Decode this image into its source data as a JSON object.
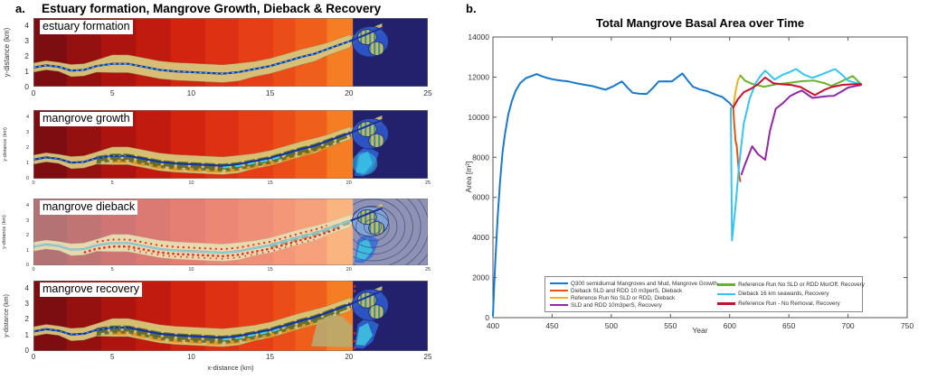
{
  "panel_a": {
    "label": "a.",
    "title": "Estuary formation, Mangrove Growth, Dieback & Recovery",
    "xlabel": "x-distance (km)",
    "ylabel": "y-distance (km)",
    "x_ticks": [
      0,
      5,
      10,
      15,
      20,
      25
    ],
    "y_ticks": [
      0,
      1,
      2,
      3,
      4
    ],
    "subplots": [
      {
        "label": "estuary formation",
        "mode": "formation"
      },
      {
        "label": "mangrove growth",
        "mode": "growth"
      },
      {
        "label": "mangrove dieback",
        "mode": "dieback"
      },
      {
        "label": "mangrove recovery",
        "mode": "recovery"
      }
    ]
  },
  "panel_b": {
    "label": "b."
  },
  "map_colors": {
    "band_edges": [
      0,
      2.1,
      4.3,
      6.5,
      8.7,
      10.9,
      13.0,
      15.2,
      16.6,
      18.6,
      20.25
    ],
    "bands": [
      "#7C0D10",
      "#951110",
      "#AD1410",
      "#C11B0F",
      "#D32410",
      "#DE3113",
      "#E63E16",
      "#EA4D18",
      "#F05E1C",
      "#F57E24"
    ],
    "ocean": "#23216B",
    "ocean_dieback": "#8E92B4",
    "floodplain": "#D8C47B",
    "channel": "#16339E",
    "cyan": "#45D2E4",
    "mangrove_olive": "#5A692D",
    "orange_band": "#E5961C",
    "dieback_red": "#E22D1A",
    "delta_blue": "#2E55C8",
    "contour": "#41477F",
    "wash_opacity": 0.42
  },
  "chart_data": {
    "type": "line",
    "title": "Total Mangrove Basal Area over Time",
    "xlabel": "Year",
    "ylabel": "Area [m²]",
    "xlim": [
      400,
      750
    ],
    "ylim": [
      0,
      14000
    ],
    "x_ticks": [
      400,
      450,
      500,
      550,
      600,
      650,
      700,
      750
    ],
    "y_ticks": [
      0,
      2000,
      4000,
      6000,
      8000,
      10000,
      12000,
      14000
    ],
    "grid": false,
    "axis_color": "#555",
    "legend_position": "inside-bottom-center",
    "legend_columns": [
      [
        0,
        1,
        2,
        3
      ],
      [
        4,
        5,
        6
      ]
    ],
    "series": [
      {
        "name": "Q300 semidiurnal Mangroves and Mud, Mangrove Growth",
        "color": "#1879D0",
        "points": [
          [
            400,
            100
          ],
          [
            401,
            1500
          ],
          [
            402,
            2800
          ],
          [
            404,
            5000
          ],
          [
            406,
            6800
          ],
          [
            408,
            8200
          ],
          [
            410,
            9100
          ],
          [
            413,
            10150
          ],
          [
            416,
            10800
          ],
          [
            419,
            11300
          ],
          [
            423,
            11700
          ],
          [
            428,
            11950
          ],
          [
            433,
            12060
          ],
          [
            437,
            12150
          ],
          [
            441,
            12050
          ],
          [
            446,
            11950
          ],
          [
            452,
            11870
          ],
          [
            458,
            11820
          ],
          [
            464,
            11780
          ],
          [
            470,
            11700
          ],
          [
            477,
            11620
          ],
          [
            484,
            11550
          ],
          [
            490,
            11450
          ],
          [
            495,
            11370
          ],
          [
            502,
            11550
          ],
          [
            509,
            11780
          ],
          [
            514,
            11450
          ],
          [
            518,
            11220
          ],
          [
            524,
            11170
          ],
          [
            530,
            11160
          ],
          [
            535,
            11450
          ],
          [
            540,
            11780
          ],
          [
            546,
            11790
          ],
          [
            551,
            11780
          ],
          [
            556,
            12000
          ],
          [
            560,
            12180
          ],
          [
            565,
            11800
          ],
          [
            569,
            11520
          ],
          [
            575,
            11380
          ],
          [
            581,
            11300
          ],
          [
            588,
            11130
          ],
          [
            594,
            11000
          ],
          [
            600,
            10700
          ],
          [
            603,
            10480
          ]
        ]
      },
      {
        "name": "Dieback SLD and RDD 10 m3perS, Dieback",
        "color": "#E8520E",
        "points": [
          [
            603,
            10480
          ],
          [
            604,
            9600
          ],
          [
            605,
            8800
          ],
          [
            606,
            8550
          ],
          [
            607,
            7800
          ],
          [
            608,
            7100
          ],
          [
            609,
            6800
          ]
        ]
      },
      {
        "name": "Reference Run No SLD or RDD, Dieback",
        "color": "#F0B01E",
        "points": [
          [
            603,
            10480
          ],
          [
            605,
            11300
          ],
          [
            607,
            11850
          ],
          [
            609,
            12080
          ]
        ]
      },
      {
        "name": "SLD and RDD 10m3perS, Recovery",
        "color": "#9226A8",
        "points": [
          [
            610,
            7150
          ],
          [
            613,
            7650
          ],
          [
            619,
            8550
          ],
          [
            624,
            8150
          ],
          [
            630,
            7880
          ],
          [
            634,
            9300
          ],
          [
            639,
            10420
          ],
          [
            645,
            10700
          ],
          [
            651,
            11050
          ],
          [
            656,
            11200
          ],
          [
            661,
            11330
          ],
          [
            666,
            11120
          ],
          [
            670,
            10960
          ],
          [
            677,
            11010
          ],
          [
            683,
            11050
          ],
          [
            688,
            11060
          ],
          [
            694,
            11260
          ],
          [
            700,
            11480
          ],
          [
            706,
            11550
          ],
          [
            711,
            11600
          ]
        ]
      },
      {
        "name": "Reference Run No SLD or RDD MorOff, Recovery",
        "color": "#67B32D",
        "points": [
          [
            609,
            12080
          ],
          [
            613,
            11820
          ],
          [
            620,
            11640
          ],
          [
            629,
            11520
          ],
          [
            640,
            11650
          ],
          [
            650,
            11710
          ],
          [
            660,
            11790
          ],
          [
            671,
            11830
          ],
          [
            680,
            11700
          ],
          [
            686,
            11560
          ],
          [
            695,
            11800
          ],
          [
            704,
            12050
          ],
          [
            711,
            11650
          ]
        ]
      },
      {
        "name": "Dieback 16 km seawards, Recovery",
        "color": "#33C5F3",
        "points": [
          [
            601,
            10450
          ],
          [
            602,
            3850
          ],
          [
            605,
            5600
          ],
          [
            608,
            7650
          ],
          [
            612,
            9700
          ],
          [
            617,
            10950
          ],
          [
            622,
            11700
          ],
          [
            626,
            12050
          ],
          [
            630,
            12320
          ],
          [
            638,
            11880
          ],
          [
            645,
            12120
          ],
          [
            651,
            12260
          ],
          [
            656,
            12400
          ],
          [
            663,
            12120
          ],
          [
            670,
            11960
          ],
          [
            677,
            12120
          ],
          [
            683,
            12260
          ],
          [
            689,
            12400
          ],
          [
            695,
            12120
          ],
          [
            700,
            11820
          ],
          [
            706,
            11720
          ],
          [
            711,
            11650
          ]
        ]
      },
      {
        "name": "Reference Run - No Removal, Recovery",
        "color": "#C8102E",
        "points": [
          [
            603,
            10480
          ],
          [
            607,
            10900
          ],
          [
            612,
            11250
          ],
          [
            618,
            11420
          ],
          [
            624,
            11650
          ],
          [
            630,
            11980
          ],
          [
            637,
            11690
          ],
          [
            644,
            11640
          ],
          [
            652,
            11610
          ],
          [
            660,
            11500
          ],
          [
            666,
            11300
          ],
          [
            672,
            11100
          ],
          [
            680,
            11360
          ],
          [
            686,
            11500
          ],
          [
            695,
            11610
          ],
          [
            703,
            11640
          ],
          [
            711,
            11650
          ]
        ]
      }
    ]
  }
}
